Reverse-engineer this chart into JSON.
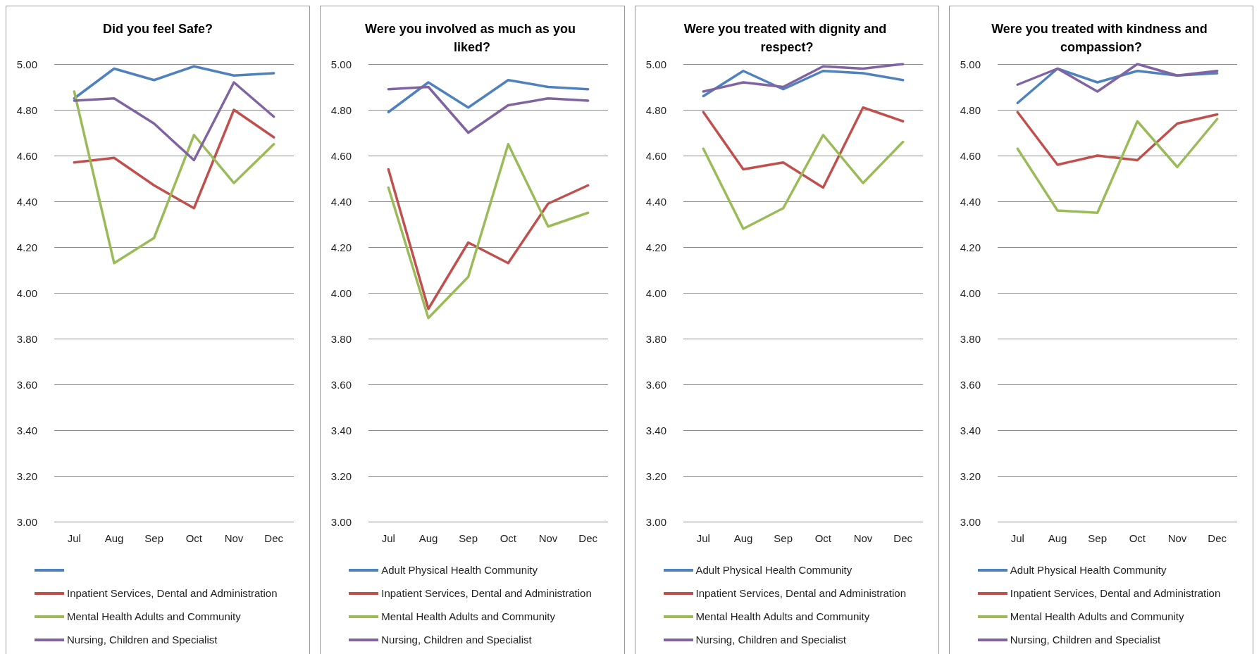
{
  "chart_data": [
    {
      "type": "line",
      "title": "Did you feel Safe?",
      "categories": [
        "Jul",
        "Aug",
        "Sep",
        "Oct",
        "Nov",
        "Dec"
      ],
      "series": [
        {
          "color": "#4f81bd",
          "values": [
            4.85,
            4.98,
            4.93,
            4.99,
            4.95,
            4.96
          ]
        },
        {
          "name": "Inpatient Services, Dental and Administration",
          "color": "#c0504d",
          "values": [
            4.57,
            4.59,
            4.47,
            4.37,
            4.8,
            4.68
          ]
        },
        {
          "name": "Mental Health Adults and Community",
          "color": "#9bbb59",
          "values": [
            4.88,
            4.13,
            4.24,
            4.69,
            4.48,
            4.65
          ]
        },
        {
          "name": "Nursing, Children and Specialist",
          "color": "#8064a2",
          "values": [
            4.84,
            4.85,
            4.74,
            4.58,
            4.92,
            4.77
          ]
        }
      ],
      "ylim": [
        3,
        5
      ],
      "yticks": [
        {
          "value": 3,
          "label": "3.00"
        },
        {
          "value": 3.2,
          "label": "3.20"
        },
        {
          "value": 3.4,
          "label": "3.40"
        },
        {
          "value": 3.6,
          "label": "3.60"
        },
        {
          "value": 3.8,
          "label": "3.80"
        },
        {
          "value": 4,
          "label": "4.00"
        },
        {
          "value": 4.2,
          "label": "4.20"
        },
        {
          "value": 4.4,
          "label": "4.40"
        },
        {
          "value": 4.6,
          "label": "4.60"
        },
        {
          "value": 4.8,
          "label": "4.80"
        },
        {
          "value": 5,
          "label": "5.00"
        }
      ],
      "grid": "y",
      "legend": "bottom",
      "marker": "none",
      "line_style": "solid"
    },
    {
      "type": "line",
      "title": "Were you involved as much as you liked?",
      "categories": [
        "Jul",
        "Aug",
        "Sep",
        "Oct",
        "Nov",
        "Dec"
      ],
      "series": [
        {
          "name": "Adult Physical Health Community",
          "color": "#4f81bd",
          "values": [
            4.79,
            4.92,
            4.81,
            4.93,
            4.9,
            4.89
          ]
        },
        {
          "name": "Inpatient Services, Dental and Administration",
          "color": "#c0504d",
          "values": [
            4.54,
            3.93,
            4.22,
            4.13,
            4.39,
            4.47
          ]
        },
        {
          "name": "Mental Health Adults and Community",
          "color": "#9bbb59",
          "values": [
            4.46,
            3.89,
            4.07,
            4.65,
            4.29,
            4.35
          ]
        },
        {
          "name": "Nursing, Children and Specialist",
          "color": "#8064a2",
          "values": [
            4.89,
            4.9,
            4.7,
            4.82,
            4.85,
            4.84
          ]
        }
      ],
      "ylim": [
        3,
        5
      ],
      "yticks": [
        {
          "value": 3,
          "label": "3.00"
        },
        {
          "value": 3.2,
          "label": "3.20"
        },
        {
          "value": 3.4,
          "label": "3.40"
        },
        {
          "value": 3.6,
          "label": "3.60"
        },
        {
          "value": 3.8,
          "label": "3.80"
        },
        {
          "value": 4,
          "label": "4.00"
        },
        {
          "value": 4.2,
          "label": "4.20"
        },
        {
          "value": 4.4,
          "label": "4.40"
        },
        {
          "value": 4.6,
          "label": "4.60"
        },
        {
          "value": 4.8,
          "label": "4.80"
        },
        {
          "value": 5,
          "label": "5.00"
        }
      ],
      "grid": "y",
      "legend": "bottom",
      "marker": "none",
      "line_style": "solid"
    },
    {
      "type": "line",
      "title": "Were you treated with dignity and respect?",
      "categories": [
        "Jul",
        "Aug",
        "Sep",
        "Oct",
        "Nov",
        "Dec"
      ],
      "series": [
        {
          "name": "Adult Physical Health Community",
          "color": "#4f81bd",
          "values": [
            4.86,
            4.97,
            4.89,
            4.97,
            4.96,
            4.93
          ]
        },
        {
          "name": "Inpatient Services, Dental and Administration",
          "color": "#c0504d",
          "values": [
            4.79,
            4.54,
            4.57,
            4.46,
            4.81,
            4.75
          ]
        },
        {
          "name": "Mental Health Adults and Community",
          "color": "#9bbb59",
          "values": [
            4.63,
            4.28,
            4.37,
            4.69,
            4.48,
            4.66
          ]
        },
        {
          "name": "Nursing, Children and Specialist",
          "color": "#8064a2",
          "values": [
            4.88,
            4.92,
            4.9,
            4.99,
            4.98,
            5.0
          ]
        }
      ],
      "ylim": [
        3,
        5
      ],
      "yticks": [
        {
          "value": 3,
          "label": "3.00"
        },
        {
          "value": 3.2,
          "label": "3.20"
        },
        {
          "value": 3.4,
          "label": "3.40"
        },
        {
          "value": 3.6,
          "label": "3.60"
        },
        {
          "value": 3.8,
          "label": "3.80"
        },
        {
          "value": 4,
          "label": "4.00"
        },
        {
          "value": 4.2,
          "label": "4.20"
        },
        {
          "value": 4.4,
          "label": "4.40"
        },
        {
          "value": 4.6,
          "label": "4.60"
        },
        {
          "value": 4.8,
          "label": "4.80"
        },
        {
          "value": 5,
          "label": "5.00"
        }
      ],
      "grid": "y",
      "legend": "bottom",
      "marker": "none",
      "line_style": "solid"
    },
    {
      "type": "line",
      "title": "Were you treated with kindness and compassion?",
      "categories": [
        "Jul",
        "Aug",
        "Sep",
        "Oct",
        "Nov",
        "Dec"
      ],
      "series": [
        {
          "name": "Adult Physical Health Community",
          "color": "#4f81bd",
          "values": [
            4.83,
            4.98,
            4.92,
            4.97,
            4.95,
            4.96
          ]
        },
        {
          "name": "Inpatient Services, Dental and Administration",
          "color": "#c0504d",
          "values": [
            4.79,
            4.56,
            4.6,
            4.58,
            4.74,
            4.78
          ]
        },
        {
          "name": "Mental Health Adults and Community",
          "color": "#9bbb59",
          "values": [
            4.63,
            4.36,
            4.35,
            4.75,
            4.55,
            4.76
          ]
        },
        {
          "name": "Nursing, Children and Specialist",
          "color": "#8064a2",
          "values": [
            4.91,
            4.98,
            4.88,
            5.0,
            4.95,
            4.97
          ]
        }
      ],
      "ylim": [
        3,
        5
      ],
      "yticks": [
        {
          "value": 3,
          "label": "3.00"
        },
        {
          "value": 3.2,
          "label": "3.20"
        },
        {
          "value": 3.4,
          "label": "3.40"
        },
        {
          "value": 3.6,
          "label": "3.60"
        },
        {
          "value": 3.8,
          "label": "3.80"
        },
        {
          "value": 4,
          "label": "4.00"
        },
        {
          "value": 4.2,
          "label": "4.20"
        },
        {
          "value": 4.4,
          "label": "4.40"
        },
        {
          "value": 4.6,
          "label": "4.60"
        },
        {
          "value": 4.8,
          "label": "4.80"
        },
        {
          "value": 5,
          "label": "5.00"
        }
      ],
      "grid": "y",
      "legend": "bottom",
      "marker": "none",
      "line_style": "solid"
    }
  ]
}
